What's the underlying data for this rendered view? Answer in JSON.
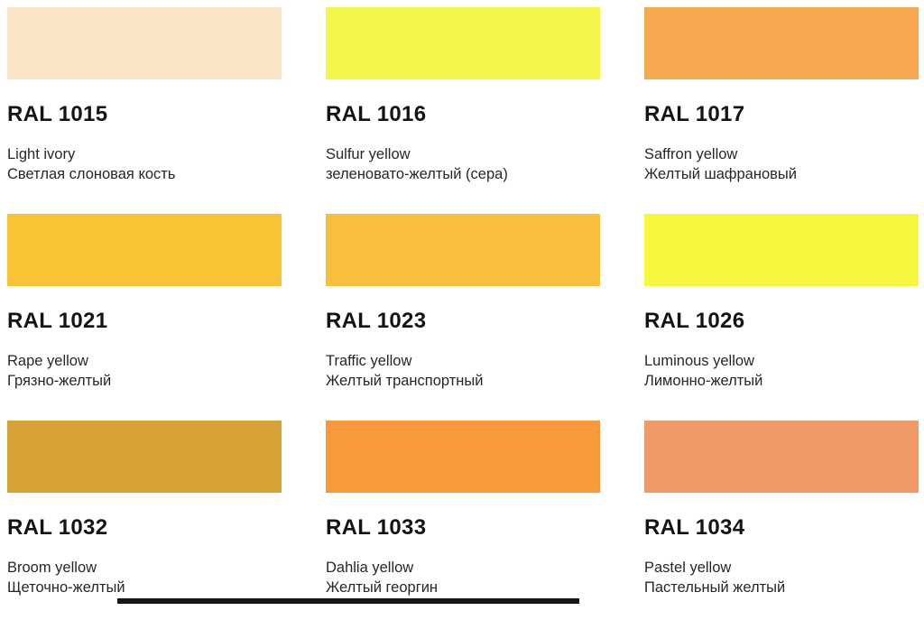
{
  "page": {
    "background": "#ffffff"
  },
  "swatches": [
    {
      "code": "RAL 1015",
      "name_en": "Light ivory",
      "name_ru": "Светлая слоновая кость",
      "color": "#FAE6C6"
    },
    {
      "code": "RAL 1016",
      "name_en": "Sulfur yellow",
      "name_ru": "зеленовато-желтый (сера)",
      "color": "#F3F64B"
    },
    {
      "code": "RAL 1017",
      "name_en": "Saffron yellow",
      "name_ru": "Желтый шафрановый",
      "color": "#F6A951"
    },
    {
      "code": "RAL 1021",
      "name_en": "Rape yellow",
      "name_ru": "Грязно-желтый",
      "color": "#F8C335"
    },
    {
      "code": "RAL 1023",
      "name_en": "Traffic yellow",
      "name_ru": "Желтый транспортный",
      "color": "#F9BE3C"
    },
    {
      "code": "RAL 1026",
      "name_en": "Luminous yellow",
      "name_ru": "Лимонно-желтый",
      "color": "#F7F73E"
    },
    {
      "code": "RAL 1032",
      "name_en": "Broom yellow",
      "name_ru": "Щеточно-желтый",
      "color": "#D9A237"
    },
    {
      "code": "RAL 1033",
      "name_en": "Dahlia yellow",
      "name_ru": "Желтый георгин",
      "color": "#F9993C"
    },
    {
      "code": "RAL 1034",
      "name_en": "Pastel yellow",
      "name_ru": "Пастельный желтый",
      "color": "#F09B67"
    }
  ],
  "seekbar": {
    "color": "#161616"
  }
}
